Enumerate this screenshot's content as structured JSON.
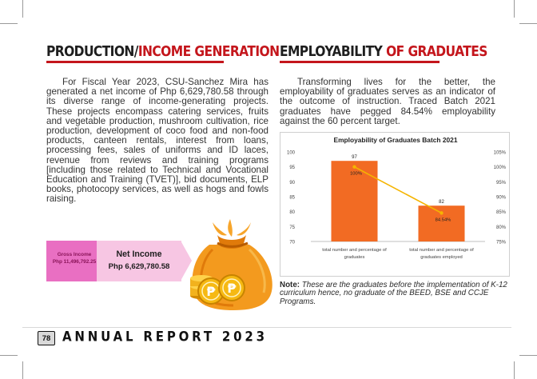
{
  "left_section": {
    "heading_dark": "PRODUCTION/",
    "heading_accent": "INCOME GENERATION",
    "paragraph": "For Fiscal Year 2023, CSU-Sanchez Mira has generated a net income of Php 6,629,780.58 through its diverse range of income-generating projects. These projects encompass catering services, fruits and vegetable production, mushroom cultivation, rice production, development of coco food and non-food products, canteen rentals, interest from loans, processing fees, sales of uniforms and ID laces, revenue from reviews and training programs [including those related to Technical and Vocational Education and Training (TVET)], bid documents, ELP books, photocopy services, as well as hogs and fowls raising.",
    "gross_label": "Gross Income",
    "gross_value": "Php 11,496,792.25",
    "net_label": "Net Income",
    "net_value": "Php 6,629,780.58",
    "coin_symbol": "₱",
    "bag_icon": "money-bag-icon"
  },
  "right_section": {
    "heading_dark": "EMPLOYABILITY",
    "heading_accent": "OF GRADUATES",
    "paragraph": "Transforming lives for the better, the employability of graduates serves as an indicator of the outcome of instruction. Traced Batch 2021 graduates have pegged 84.54% employability against the 60 percent target.",
    "note_label": "Note:",
    "note_text": "These are the graduates before the implementation of K-12 curriculum hence, no graduate of the BEED, BSE and CCJE Programs."
  },
  "chart_data": {
    "type": "bar",
    "title": "Employability of Graduates Batch 2021",
    "categories": [
      "total number and percentage of graduates",
      "total number and percentage of graduates employed"
    ],
    "category_lines": [
      [
        "total number and percentage of",
        "graduates"
      ],
      [
        "total number and percentage of",
        "graduates employed"
      ]
    ],
    "series": [
      {
        "values": [
          97,
          82
        ],
        "axis": "left",
        "kind": "bar",
        "data_labels": [
          "97",
          "82"
        ]
      },
      {
        "values": [
          100,
          84.54
        ],
        "axis": "right",
        "kind": "line",
        "data_labels": [
          "100%",
          "84.54%"
        ]
      }
    ],
    "ylim_left": [
      70,
      100
    ],
    "yticks_left": [
      "70",
      "75",
      "80",
      "85",
      "90",
      "95",
      "100"
    ],
    "ylim_right": [
      75,
      105
    ],
    "yticks_right": [
      "75%",
      "80%",
      "85%",
      "90%",
      "95%",
      "100%",
      "105%"
    ],
    "grid": false,
    "colors": {
      "bar": "#f26b23",
      "line": "#f5b400",
      "marker": "#f5b400"
    }
  },
  "footer": {
    "page_number": "78",
    "title": "ANNUAL REPORT 2023"
  },
  "colors": {
    "accent": "#c4161c",
    "gross_box": "#e96fc2",
    "net_box": "#f7c6e3",
    "bag": "#f39a1e"
  }
}
